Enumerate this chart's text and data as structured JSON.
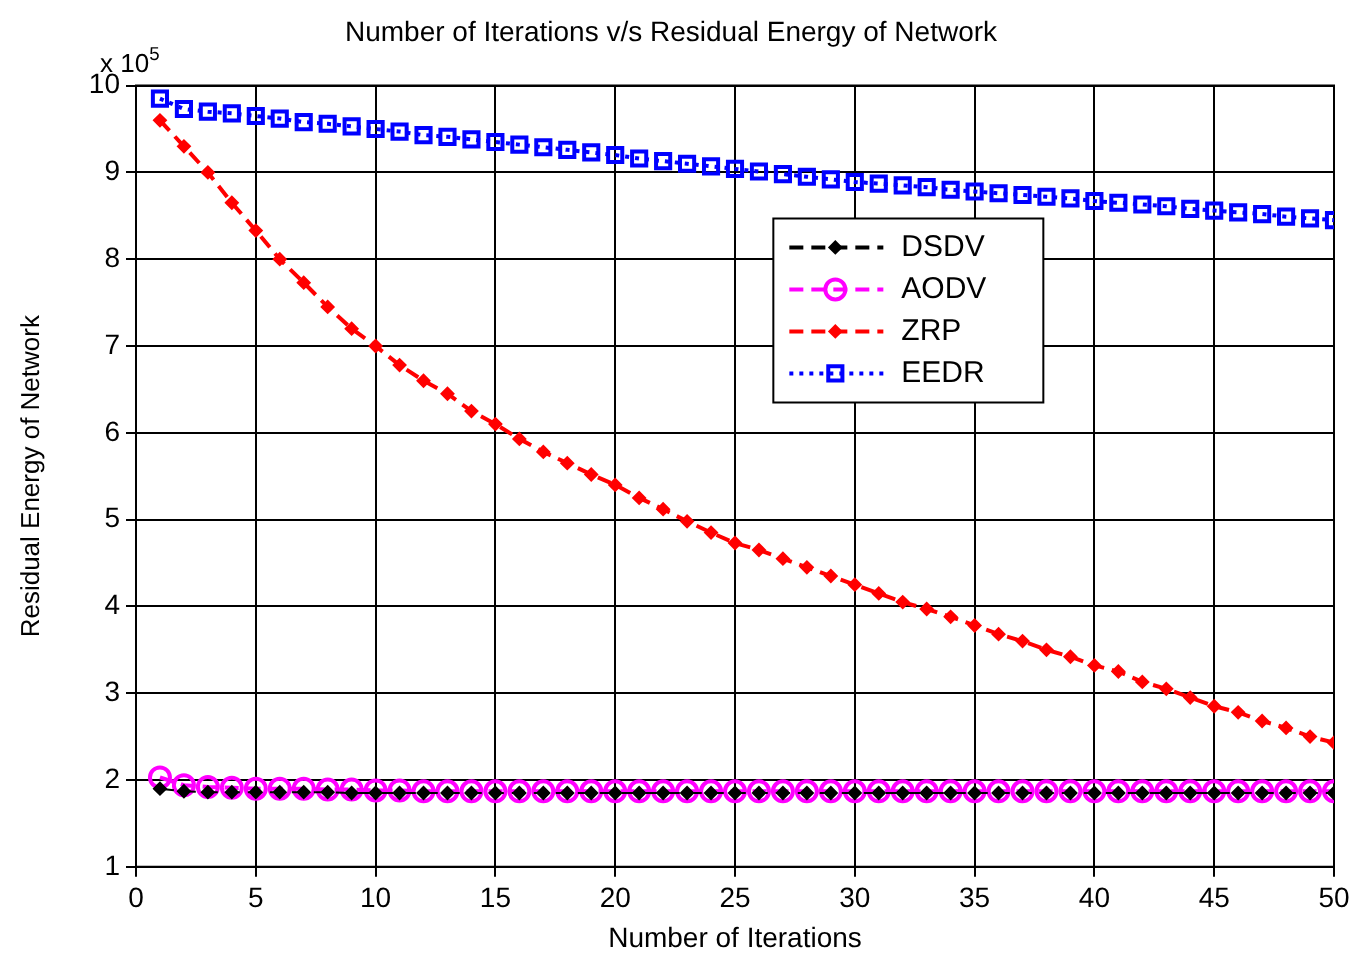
{
  "chart_data": {
    "type": "line",
    "title": "Number of Iterations v/s Residual Energy of Network",
    "xlabel": "Number of Iterations",
    "ylabel": "Residual Energy of Network",
    "annotations": [
      "x 10$^{5}$"
    ],
    "x": [
      1,
      2,
      3,
      4,
      5,
      6,
      7,
      8,
      9,
      10,
      11,
      12,
      13,
      14,
      15,
      16,
      17,
      18,
      19,
      20,
      21,
      22,
      23,
      24,
      25,
      26,
      27,
      28,
      29,
      30,
      31,
      32,
      33,
      34,
      35,
      36,
      37,
      38,
      39,
      40,
      41,
      42,
      43,
      44,
      45,
      46,
      47,
      48,
      49,
      50
    ],
    "series": [
      {
        "name": "DSDV",
        "color": "#000000",
        "marker": "diamond",
        "line_style": "dashed",
        "values": [
          1.9,
          1.87,
          1.86,
          1.86,
          1.86,
          1.86,
          1.86,
          1.86,
          1.85,
          1.85,
          1.85,
          1.85,
          1.85,
          1.85,
          1.85,
          1.85,
          1.85,
          1.85,
          1.85,
          1.85,
          1.85,
          1.85,
          1.85,
          1.85,
          1.85,
          1.85,
          1.85,
          1.85,
          1.85,
          1.85,
          1.85,
          1.85,
          1.85,
          1.85,
          1.85,
          1.85,
          1.85,
          1.85,
          1.85,
          1.85,
          1.85,
          1.85,
          1.85,
          1.85,
          1.85,
          1.85,
          1.85,
          1.85,
          1.85,
          1.85
        ]
      },
      {
        "name": "AODV",
        "color": "#ff00ff",
        "marker": "circle",
        "line_style": "dashed",
        "values": [
          2.03,
          1.94,
          1.92,
          1.91,
          1.9,
          1.9,
          1.9,
          1.89,
          1.89,
          1.88,
          1.88,
          1.87,
          1.87,
          1.87,
          1.87,
          1.87,
          1.87,
          1.87,
          1.87,
          1.87,
          1.87,
          1.87,
          1.87,
          1.87,
          1.87,
          1.87,
          1.87,
          1.87,
          1.87,
          1.87,
          1.87,
          1.87,
          1.87,
          1.87,
          1.87,
          1.87,
          1.87,
          1.87,
          1.87,
          1.87,
          1.87,
          1.87,
          1.87,
          1.87,
          1.87,
          1.87,
          1.87,
          1.87,
          1.87,
          1.87
        ]
      },
      {
        "name": "ZRP",
        "color": "#ff0000",
        "marker": "diamond",
        "line_style": "dashed",
        "values": [
          9.6,
          9.3,
          9.0,
          8.65,
          8.33,
          8.0,
          7.73,
          7.45,
          7.2,
          7.0,
          6.78,
          6.6,
          6.45,
          6.25,
          6.1,
          5.93,
          5.78,
          5.65,
          5.52,
          5.4,
          5.25,
          5.12,
          4.98,
          4.85,
          4.73,
          4.65,
          4.55,
          4.45,
          4.35,
          4.25,
          4.15,
          4.05,
          3.97,
          3.88,
          3.78,
          3.68,
          3.6,
          3.5,
          3.42,
          3.32,
          3.25,
          3.13,
          3.05,
          2.95,
          2.85,
          2.78,
          2.68,
          2.6,
          2.5,
          2.43
        ]
      },
      {
        "name": "EEDR",
        "color": "#0000ff",
        "marker": "square",
        "line_style": "dotted",
        "values": [
          9.85,
          9.73,
          9.7,
          9.68,
          9.65,
          9.62,
          9.58,
          9.56,
          9.53,
          9.5,
          9.47,
          9.43,
          9.41,
          9.38,
          9.35,
          9.32,
          9.29,
          9.26,
          9.23,
          9.2,
          9.16,
          9.13,
          9.1,
          9.07,
          9.04,
          9.01,
          8.98,
          8.95,
          8.92,
          8.89,
          8.87,
          8.85,
          8.83,
          8.8,
          8.78,
          8.76,
          8.74,
          8.72,
          8.7,
          8.67,
          8.65,
          8.63,
          8.61,
          8.58,
          8.56,
          8.54,
          8.52,
          8.49,
          8.47,
          8.45
        ]
      }
    ],
    "xlim": [
      0,
      50
    ],
    "xticks": [
      0,
      5,
      10,
      15,
      20,
      25,
      30,
      35,
      40,
      45,
      50
    ],
    "ylim": [
      1,
      10
    ],
    "yticks": [
      1,
      2,
      3,
      4,
      5,
      6,
      7,
      8,
      9,
      10
    ],
    "grid": true,
    "legend": "top right"
  }
}
